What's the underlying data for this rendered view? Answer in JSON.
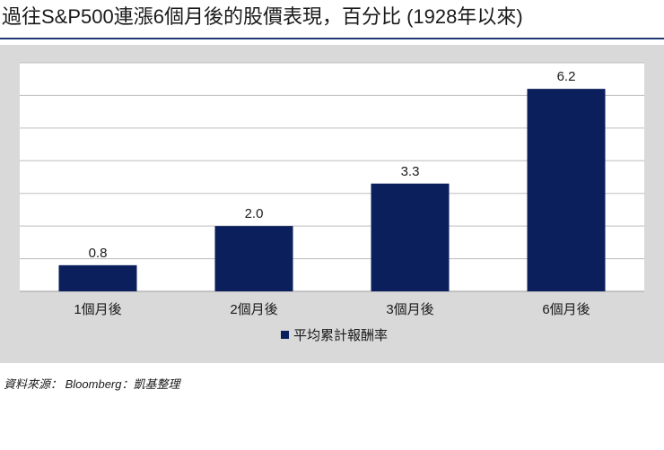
{
  "title": "過往S&P500連漲6個月後的股價表現，百分比 (1928年以來)",
  "source": "資料來源： Bloomberg：凱基整理",
  "colors": {
    "bar": "#0b1f5c",
    "grid": "#bdbdbd",
    "plot_bg": "#ffffff",
    "title_rule": "#1f3a73"
  },
  "chart_data": {
    "type": "bar",
    "title": "過往S&P500連漲6個月後的股價表現，百分比 (1928年以來)",
    "categories": [
      "1個月後",
      "2個月後",
      "3個月後",
      "6個月後"
    ],
    "series": [
      {
        "name": "平均累計報酬率",
        "values": [
          0.8,
          2.0,
          3.3,
          6.2
        ],
        "labels": [
          "0.8",
          "2.0",
          "3.3",
          "6.2"
        ]
      }
    ],
    "xlabel": "",
    "ylabel": "",
    "ylim": [
      0,
      7
    ],
    "grid": true,
    "legend": "bottom-center"
  }
}
